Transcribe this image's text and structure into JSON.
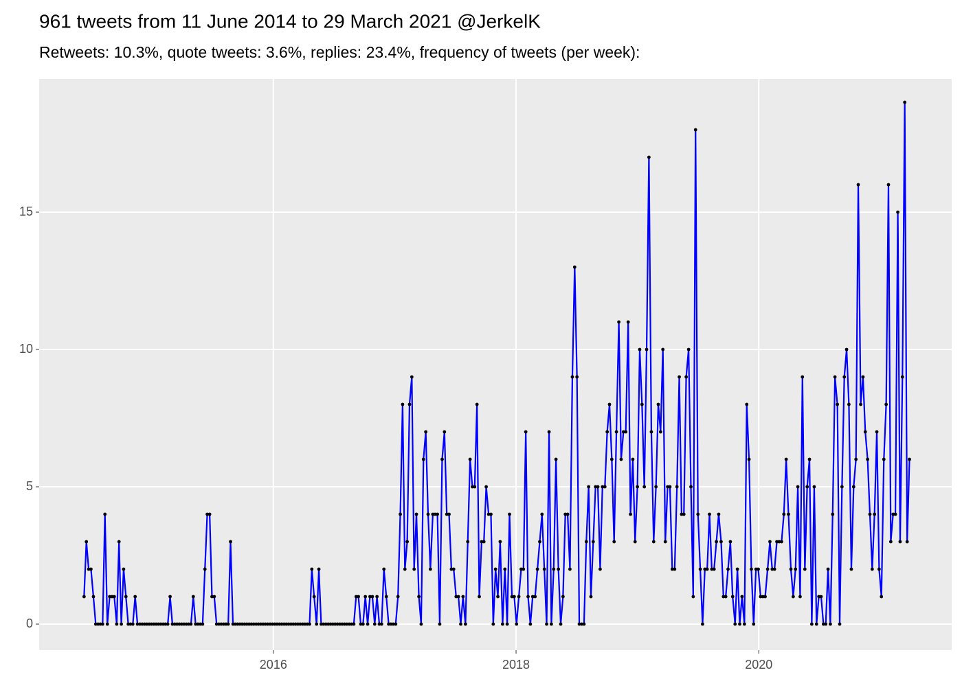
{
  "chart_data": {
    "type": "line",
    "title": "961 tweets from 11 June 2014 to 29 March 2021 @JerkelK",
    "subtitle": "Retweets: 10.3%, quote tweets: 3.6%, replies: 23.4%, frequency of tweets (per week):",
    "line_color": "#0000ff",
    "point_color": "#000000",
    "grid": true,
    "xlim": [
      2014.07,
      2021.59
    ],
    "xticks": [
      2016,
      2018,
      2020
    ],
    "ylim": [
      -0.95,
      19.85
    ],
    "yticks": [
      0,
      5,
      10,
      15
    ],
    "x": [
      2014.44,
      2014.459,
      2014.478,
      2014.497,
      2014.517,
      2014.536,
      2014.555,
      2014.574,
      2014.593,
      2014.612,
      2014.632,
      2014.651,
      2014.67,
      2014.689,
      2014.709,
      2014.728,
      2014.747,
      2014.766,
      2014.785,
      2014.804,
      2014.823,
      2014.842,
      2014.861,
      2014.88,
      2014.9,
      2014.919,
      2014.938,
      2014.957,
      2014.976,
      2014.995,
      2015.015,
      2015.034,
      2015.053,
      2015.072,
      2015.092,
      2015.111,
      2015.13,
      2015.149,
      2015.168,
      2015.187,
      2015.206,
      2015.225,
      2015.244,
      2015.263,
      2015.283,
      2015.302,
      2015.321,
      2015.34,
      2015.359,
      2015.378,
      2015.398,
      2015.417,
      2015.436,
      2015.455,
      2015.475,
      2015.494,
      2015.513,
      2015.532,
      2015.551,
      2015.57,
      2015.59,
      2015.609,
      2015.628,
      2015.647,
      2015.667,
      2015.686,
      2015.705,
      2015.724,
      2015.743,
      2015.762,
      2015.781,
      2015.8,
      2015.819,
      2015.838,
      2015.858,
      2015.877,
      2015.896,
      2015.915,
      2015.934,
      2015.953,
      2015.973,
      2015.992,
      2016.011,
      2016.03,
      2016.05,
      2016.069,
      2016.088,
      2016.107,
      2016.126,
      2016.145,
      2016.164,
      2016.183,
      2016.202,
      2016.221,
      2016.241,
      2016.26,
      2016.279,
      2016.298,
      2016.317,
      2016.336,
      2016.356,
      2016.375,
      2016.394,
      2016.413,
      2016.433,
      2016.452,
      2016.471,
      2016.49,
      2016.509,
      2016.528,
      2016.548,
      2016.567,
      2016.586,
      2016.605,
      2016.625,
      2016.644,
      2016.663,
      2016.682,
      2016.701,
      2016.72,
      2016.739,
      2016.758,
      2016.777,
      2016.796,
      2016.816,
      2016.835,
      2016.854,
      2016.873,
      2016.892,
      2016.911,
      2016.931,
      2016.95,
      2016.969,
      2016.988,
      2017.008,
      2017.027,
      2017.046,
      2017.065,
      2017.084,
      2017.103,
      2017.122,
      2017.141,
      2017.16,
      2017.179,
      2017.199,
      2017.218,
      2017.237,
      2017.256,
      2017.275,
      2017.294,
      2017.314,
      2017.333,
      2017.352,
      2017.371,
      2017.391,
      2017.41,
      2017.429,
      2017.448,
      2017.467,
      2017.486,
      2017.506,
      2017.525,
      2017.544,
      2017.563,
      2017.583,
      2017.602,
      2017.621,
      2017.64,
      2017.659,
      2017.678,
      2017.697,
      2017.716,
      2017.735,
      2017.754,
      2017.774,
      2017.793,
      2017.812,
      2017.831,
      2017.85,
      2017.869,
      2017.889,
      2017.908,
      2017.927,
      2017.946,
      2017.966,
      2017.985,
      2018.004,
      2018.023,
      2018.042,
      2018.061,
      2018.08,
      2018.099,
      2018.118,
      2018.137,
      2018.157,
      2018.176,
      2018.195,
      2018.214,
      2018.233,
      2018.252,
      2018.272,
      2018.291,
      2018.31,
      2018.329,
      2018.349,
      2018.368,
      2018.387,
      2018.406,
      2018.425,
      2018.444,
      2018.464,
      2018.483,
      2018.502,
      2018.521,
      2018.541,
      2018.56,
      2018.579,
      2018.598,
      2018.617,
      2018.636,
      2018.655,
      2018.674,
      2018.693,
      2018.712,
      2018.732,
      2018.751,
      2018.77,
      2018.789,
      2018.808,
      2018.827,
      2018.847,
      2018.866,
      2018.885,
      2018.904,
      2018.924,
      2018.943,
      2018.962,
      2018.981,
      2019.0,
      2019.019,
      2019.038,
      2019.057,
      2019.076,
      2019.095,
      2019.115,
      2019.134,
      2019.153,
      2019.172,
      2019.191,
      2019.21,
      2019.23,
      2019.249,
      2019.268,
      2019.287,
      2019.307,
      2019.326,
      2019.345,
      2019.364,
      2019.383,
      2019.402,
      2019.422,
      2019.441,
      2019.46,
      2019.479,
      2019.499,
      2019.518,
      2019.537,
      2019.556,
      2019.575,
      2019.594,
      2019.613,
      2019.632,
      2019.651,
      2019.67,
      2019.69,
      2019.709,
      2019.728,
      2019.747,
      2019.766,
      2019.785,
      2019.805,
      2019.824,
      2019.843,
      2019.862,
      2019.882,
      2019.901,
      2019.92,
      2019.939,
      2019.958,
      2019.977,
      2019.996,
      2020.015,
      2020.034,
      2020.053,
      2020.073,
      2020.092,
      2020.111,
      2020.13,
      2020.149,
      2020.168,
      2020.188,
      2020.207,
      2020.226,
      2020.245,
      2020.265,
      2020.284,
      2020.303,
      2020.322,
      2020.341,
      2020.36,
      2020.38,
      2020.399,
      2020.418,
      2020.437,
      2020.457,
      2020.476,
      2020.495,
      2020.514,
      2020.533,
      2020.552,
      2020.571,
      2020.59,
      2020.609,
      2020.628,
      2020.648,
      2020.667,
      2020.686,
      2020.705,
      2020.724,
      2020.743,
      2020.763,
      2020.782,
      2020.801,
      2020.82,
      2020.84,
      2020.859,
      2020.878,
      2020.897,
      2020.916,
      2020.935,
      2020.954,
      2020.973,
      2020.992,
      2021.011,
      2021.031,
      2021.05,
      2021.069,
      2021.088,
      2021.107,
      2021.126,
      2021.146,
      2021.165,
      2021.184,
      2021.203,
      2021.223,
      2021.242
    ],
    "values": [
      1,
      3,
      2,
      2,
      1,
      0,
      0,
      0,
      0,
      4,
      0,
      1,
      1,
      1,
      0,
      3,
      0,
      2,
      1,
      0,
      0,
      0,
      1,
      0,
      0,
      0,
      0,
      0,
      0,
      0,
      0,
      0,
      0,
      0,
      0,
      0,
      0,
      1,
      0,
      0,
      0,
      0,
      0,
      0,
      0,
      0,
      0,
      1,
      0,
      0,
      0,
      0,
      2,
      4,
      4,
      1,
      1,
      0,
      0,
      0,
      0,
      0,
      0,
      3,
      0,
      0,
      0,
      0,
      0,
      0,
      0,
      0,
      0,
      0,
      0,
      0,
      0,
      0,
      0,
      0,
      0,
      0,
      0,
      0,
      0,
      0,
      0,
      0,
      0,
      0,
      0,
      0,
      0,
      0,
      0,
      0,
      0,
      0,
      2,
      1,
      0,
      2,
      0,
      0,
      0,
      0,
      0,
      0,
      0,
      0,
      0,
      0,
      0,
      0,
      0,
      0,
      0,
      1,
      1,
      0,
      0,
      1,
      0,
      1,
      1,
      0,
      1,
      0,
      0,
      2,
      1,
      0,
      0,
      0,
      0,
      1,
      4,
      8,
      2,
      3,
      8,
      9,
      2,
      4,
      1,
      0,
      6,
      7,
      4,
      2,
      4,
      4,
      4,
      0,
      6,
      7,
      4,
      4,
      2,
      2,
      1,
      1,
      0,
      1,
      0,
      3,
      6,
      5,
      5,
      8,
      1,
      3,
      3,
      5,
      4,
      4,
      0,
      2,
      1,
      3,
      0,
      2,
      0,
      4,
      1,
      1,
      0,
      1,
      2,
      2,
      7,
      1,
      0,
      1,
      1,
      2,
      3,
      4,
      2,
      0,
      7,
      0,
      2,
      6,
      2,
      0,
      1,
      4,
      4,
      2,
      9,
      13,
      9,
      0,
      0,
      0,
      3,
      5,
      1,
      3,
      5,
      5,
      2,
      5,
      5,
      7,
      8,
      6,
      3,
      7,
      11,
      6,
      7,
      7,
      11,
      4,
      6,
      3,
      5,
      10,
      8,
      5,
      10,
      17,
      7,
      3,
      5,
      8,
      7,
      10,
      3,
      5,
      5,
      2,
      2,
      5,
      9,
      4,
      4,
      9,
      10,
      5,
      1,
      18,
      4,
      2,
      0,
      2,
      2,
      4,
      2,
      2,
      3,
      4,
      3,
      1,
      1,
      2,
      3,
      1,
      0,
      2,
      0,
      1,
      0,
      8,
      6,
      2,
      0,
      2,
      2,
      1,
      1,
      1,
      2,
      3,
      2,
      2,
      3,
      3,
      3,
      4,
      6,
      4,
      2,
      1,
      2,
      5,
      1,
      9,
      2,
      5,
      6,
      0,
      5,
      0,
      1,
      1,
      0,
      0,
      2,
      0,
      4,
      9,
      8,
      0,
      5,
      9,
      10,
      8,
      2,
      5,
      6,
      16,
      8,
      9,
      7,
      6,
      4,
      2,
      4,
      7,
      2,
      1,
      6,
      8,
      16,
      3,
      4,
      4,
      15,
      3,
      9,
      19,
      3,
      6
    ]
  }
}
